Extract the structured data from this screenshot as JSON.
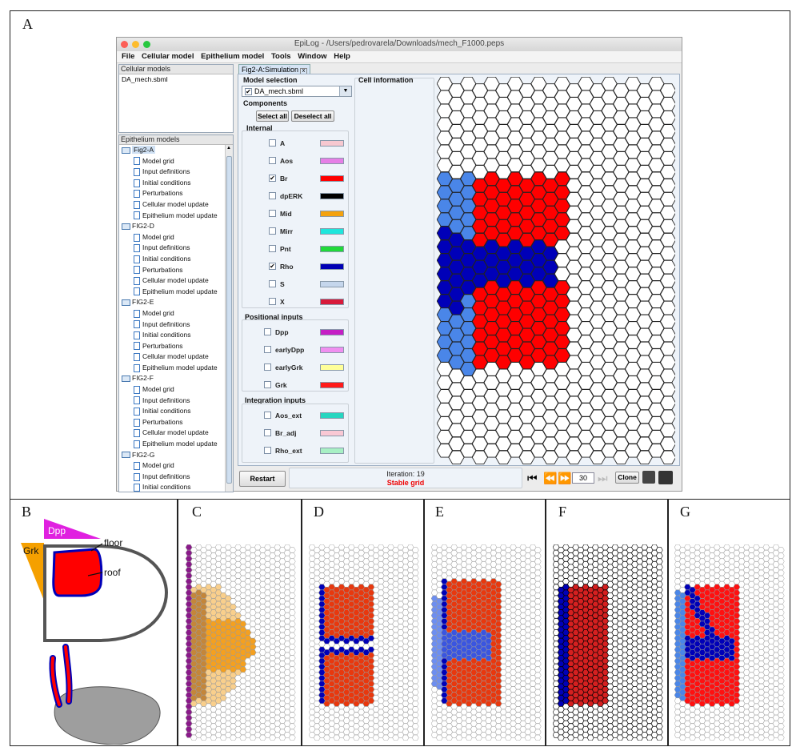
{
  "panels": {
    "A": "A",
    "B": "B",
    "C": "C",
    "D": "D",
    "E": "E",
    "F": "F",
    "G": "G"
  },
  "window": {
    "title": "EpiLog - /Users/pedrovarela/Downloads/mech_F1000.peps",
    "menu": [
      "File",
      "Cellular model",
      "Epithelium model",
      "Tools",
      "Window",
      "Help"
    ]
  },
  "cellular_models": {
    "title": "Cellular models",
    "items": [
      "DA_mech.sbml"
    ]
  },
  "epithelium_models": {
    "title": "Epithelium models",
    "groups": [
      {
        "name": "Fig2-A",
        "selected": true,
        "children": [
          "Model grid",
          "Input definitions",
          "Initial conditions",
          "Perturbations",
          "Cellular model update",
          "Epithelium model update"
        ]
      },
      {
        "name": "FIG2-D",
        "children": [
          "Model grid",
          "Input definitions",
          "Initial conditions",
          "Perturbations",
          "Cellular model update",
          "Epithelium model update"
        ]
      },
      {
        "name": "FIG2-E",
        "children": [
          "Model grid",
          "Input definitions",
          "Initial conditions",
          "Perturbations",
          "Cellular model update",
          "Epithelium model update"
        ]
      },
      {
        "name": "FIG2-F",
        "children": [
          "Model grid",
          "Input definitions",
          "Initial conditions",
          "Perturbations",
          "Cellular model update",
          "Epithelium model update"
        ]
      },
      {
        "name": "FIG2-G",
        "children": [
          "Model grid",
          "Input definitions",
          "Initial conditions"
        ]
      }
    ]
  },
  "tab": {
    "label": "Fig2-A:Simulation",
    "close": "x"
  },
  "model_selection": {
    "title": "Model selection",
    "value": "DA_mech.sbml",
    "checkbox": "✔"
  },
  "components": {
    "title": "Components",
    "select_all": "Select all",
    "deselect_all": "Deselect all",
    "internal_title": "Internal",
    "internal": [
      {
        "name": "A",
        "checked": false,
        "color": "#f7c8d0"
      },
      {
        "name": "Aos",
        "checked": false,
        "color": "#e67fe6"
      },
      {
        "name": "Br",
        "checked": true,
        "color": "#ff0000"
      },
      {
        "name": "dpERK",
        "checked": false,
        "color": "#000000"
      },
      {
        "name": "Mid",
        "checked": false,
        "color": "#f4a20e"
      },
      {
        "name": "Mirr",
        "checked": false,
        "color": "#1ee6dc"
      },
      {
        "name": "Pnt",
        "checked": false,
        "color": "#21d93a"
      },
      {
        "name": "Rho",
        "checked": true,
        "color": "#0000b4"
      },
      {
        "name": "S",
        "checked": false,
        "color": "#c5d6ec"
      },
      {
        "name": "X",
        "checked": false,
        "color": "#d81a3a"
      }
    ],
    "positional_title": "Positional inputs",
    "positional": [
      {
        "name": "Dpp",
        "color": "#c51fc5"
      },
      {
        "name": "earlyDpp",
        "color": "#f08ff0"
      },
      {
        "name": "earlyGrk",
        "color": "#ffff99"
      },
      {
        "name": "Grk",
        "color": "#ff1a1a"
      }
    ],
    "integration_title": "Integration inputs",
    "integration": [
      {
        "name": "Aos_ext",
        "color": "#26d6c0"
      },
      {
        "name": "Br_adj",
        "color": "#f9c8d4"
      },
      {
        "name": "Rho_ext",
        "color": "#a8f0c4"
      }
    ]
  },
  "cell_information": {
    "title": "Cell information"
  },
  "status": {
    "restart": "Restart",
    "iteration": "Iteration: 19",
    "stable": "Stable grid",
    "step_value": "30",
    "clone": "Clone"
  },
  "panelB": {
    "dpp": "Dpp",
    "grk": "Grk",
    "floor": "floor",
    "roof": "roof"
  },
  "colors": {
    "red": "#ff0000",
    "dark_blue": "#0000b8",
    "light_blue": "#4a86e8",
    "orange": "#f4a020",
    "purple": "#8a1a8a",
    "gray": "#9e9e9e"
  }
}
